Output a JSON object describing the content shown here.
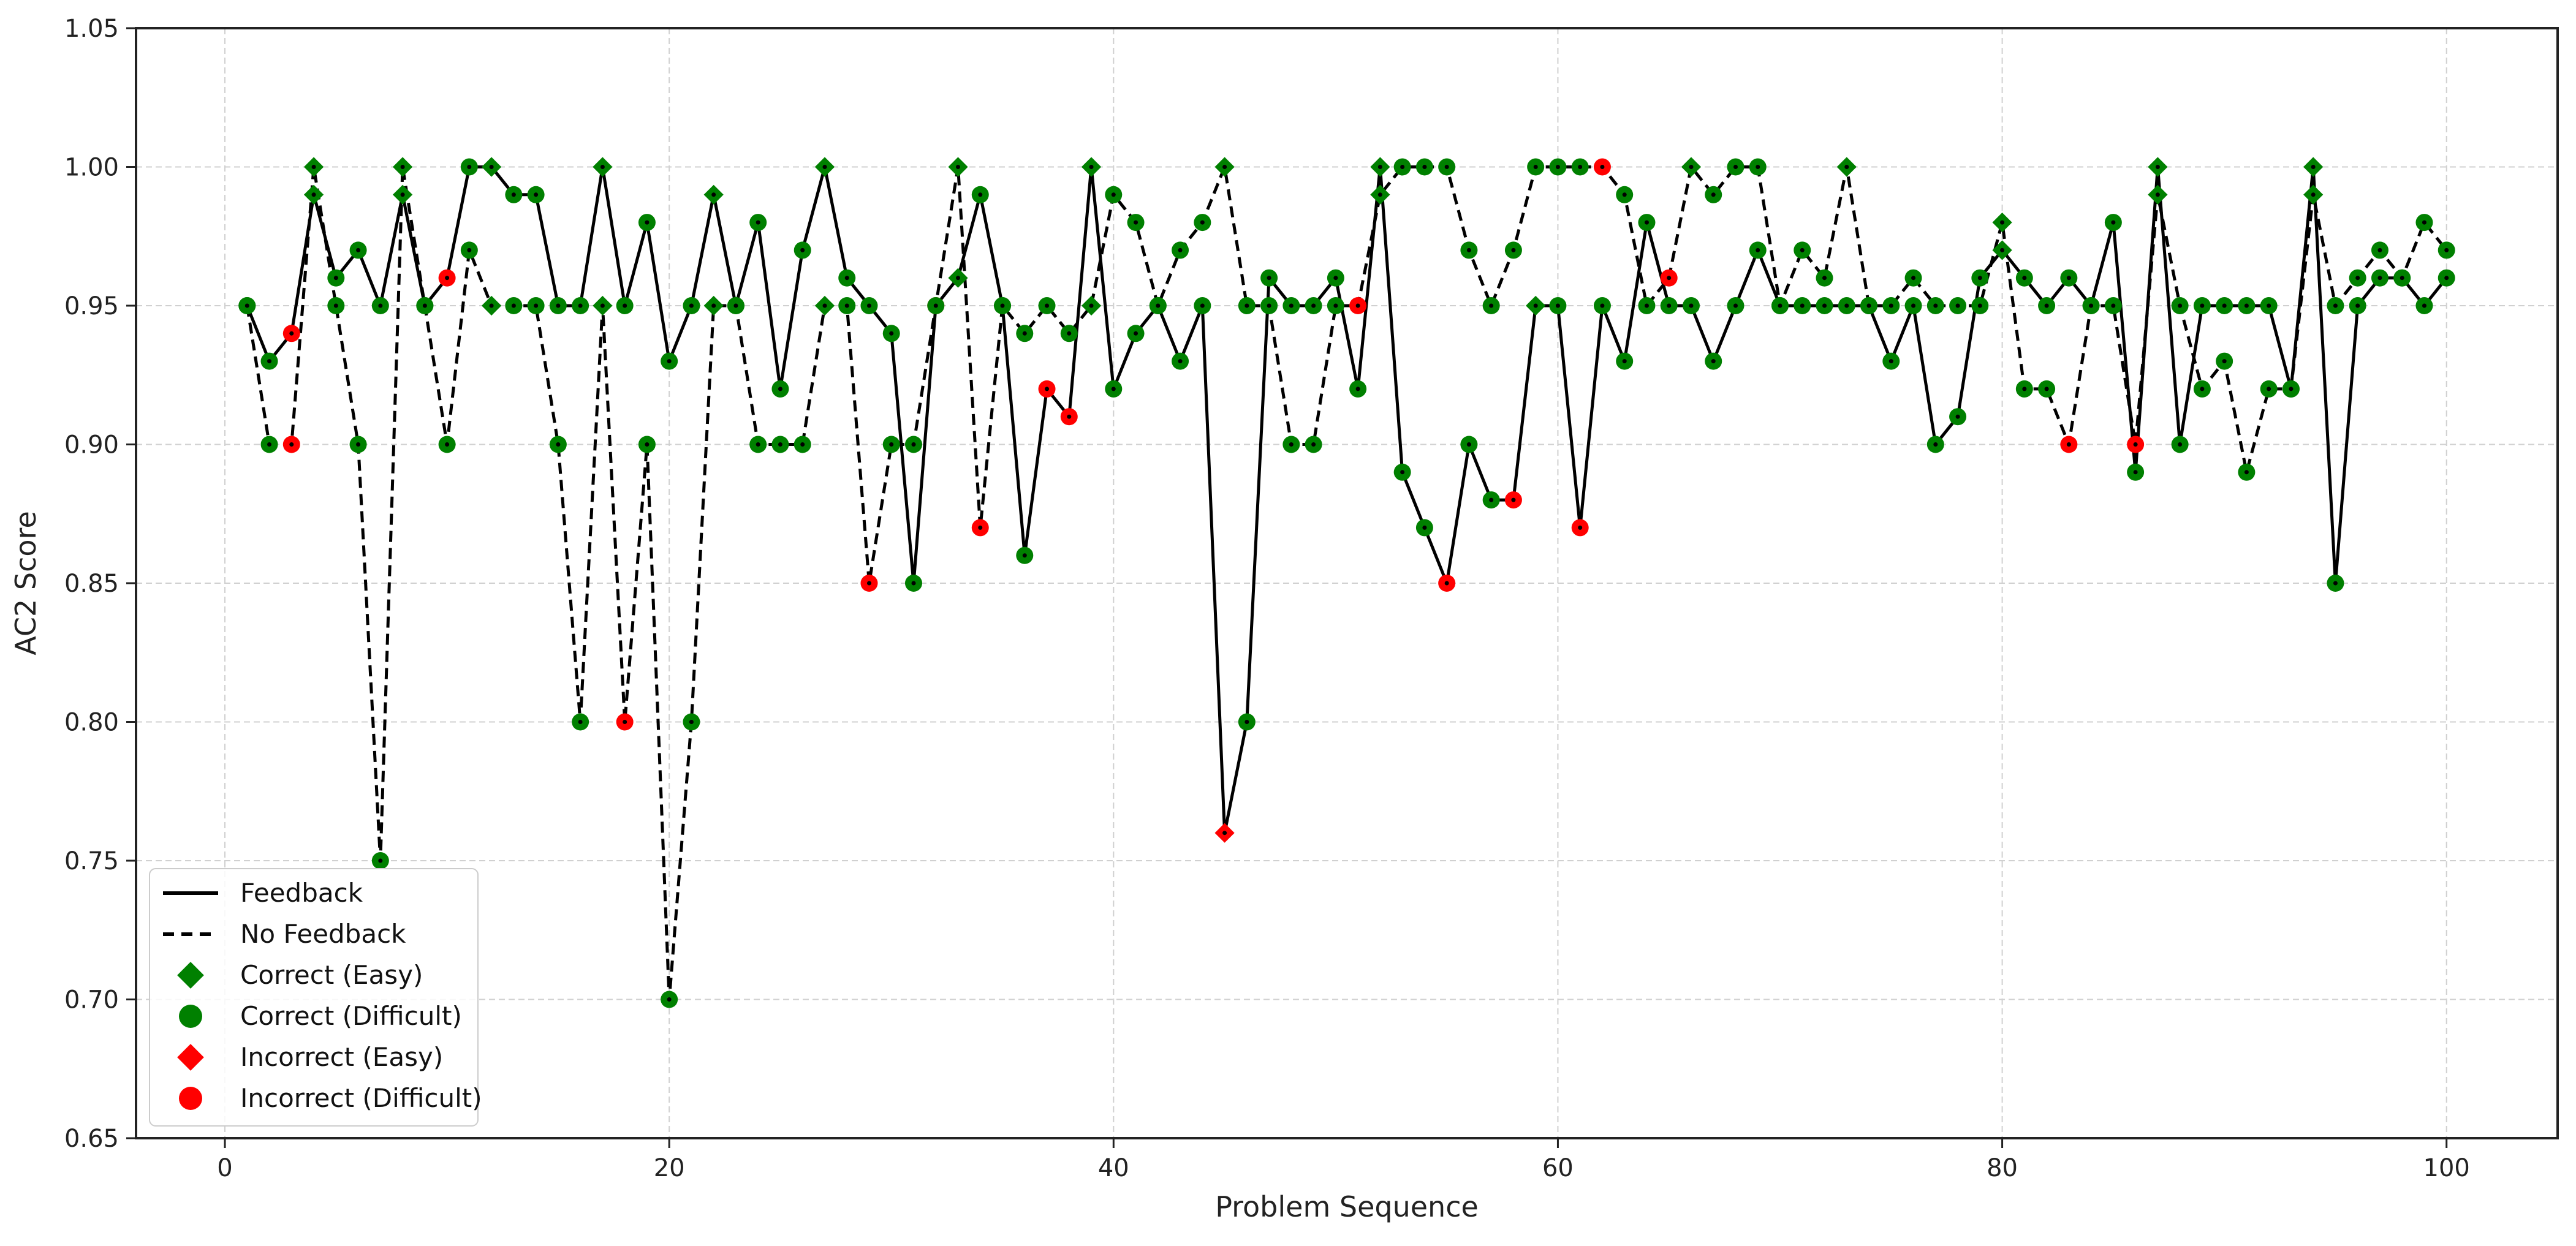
{
  "chart_data": {
    "type": "line",
    "xlabel": "Problem Sequence",
    "ylabel": "AC2 Score",
    "xlim": [
      -4,
      105
    ],
    "ylim": [
      0.65,
      1.05
    ],
    "x_ticks": [
      {
        "value": 0,
        "label": "0"
      },
      {
        "value": 20,
        "label": "20"
      },
      {
        "value": 40,
        "label": "40"
      },
      {
        "value": 60,
        "label": "60"
      },
      {
        "value": 80,
        "label": "80"
      },
      {
        "value": 100,
        "label": "100"
      }
    ],
    "y_ticks": [
      {
        "value": 0.65,
        "label": "0.65"
      },
      {
        "value": 0.7,
        "label": "0.70"
      },
      {
        "value": 0.75,
        "label": "0.75"
      },
      {
        "value": 0.8,
        "label": "0.80"
      },
      {
        "value": 0.85,
        "label": "0.85"
      },
      {
        "value": 0.9,
        "label": "0.90"
      },
      {
        "value": 0.95,
        "label": "0.95"
      },
      {
        "value": 1.0,
        "label": "1.00"
      },
      {
        "value": 1.05,
        "label": "1.05"
      }
    ],
    "grid": true,
    "legend_position": "bottom-left",
    "x": [
      1,
      2,
      3,
      4,
      5,
      6,
      7,
      8,
      9,
      10,
      11,
      12,
      13,
      14,
      15,
      16,
      17,
      18,
      19,
      20,
      21,
      22,
      23,
      24,
      25,
      26,
      27,
      28,
      29,
      30,
      31,
      32,
      33,
      34,
      35,
      36,
      37,
      38,
      39,
      40,
      41,
      42,
      43,
      44,
      45,
      46,
      47,
      48,
      49,
      50,
      51,
      52,
      53,
      54,
      55,
      56,
      57,
      58,
      59,
      60,
      61,
      62,
      63,
      64,
      65,
      66,
      67,
      68,
      69,
      70,
      71,
      72,
      73,
      74,
      75,
      76,
      77,
      78,
      79,
      80,
      81,
      82,
      83,
      84,
      85,
      86,
      87,
      88,
      89,
      90,
      91,
      92,
      93,
      94,
      95,
      96,
      97,
      98,
      99,
      100
    ],
    "series": [
      {
        "name": "Feedback",
        "line_style": "solid",
        "values": [
          0.95,
          0.93,
          0.94,
          0.99,
          0.96,
          0.97,
          0.95,
          0.99,
          0.95,
          0.96,
          1.0,
          1.0,
          0.99,
          0.99,
          0.95,
          0.95,
          1.0,
          0.95,
          0.98,
          0.93,
          0.95,
          0.99,
          0.95,
          0.98,
          0.92,
          0.97,
          1.0,
          0.96,
          0.95,
          0.94,
          0.85,
          0.95,
          0.96,
          0.99,
          0.95,
          0.86,
          0.92,
          0.91,
          1.0,
          0.92,
          0.94,
          0.95,
          0.93,
          0.95,
          0.76,
          0.8,
          0.96,
          0.95,
          0.95,
          0.96,
          0.92,
          1.0,
          0.89,
          0.87,
          0.85,
          0.9,
          0.88,
          0.88,
          0.95,
          0.95,
          0.87,
          0.95,
          0.93,
          0.98,
          0.95,
          0.95,
          0.93,
          0.95,
          0.97,
          0.95,
          0.95,
          0.95,
          0.95,
          0.95,
          0.93,
          0.95,
          0.9,
          0.91,
          0.96,
          0.97,
          0.96,
          0.95,
          0.96,
          0.95,
          0.98,
          0.89,
          1.0,
          0.9,
          0.95,
          0.95,
          0.95,
          0.95,
          0.92,
          1.0,
          0.85,
          0.95,
          0.96,
          0.96,
          0.95,
          0.96
        ],
        "markers": [
          "C-D",
          "C-D",
          "I-D",
          "C-E",
          "C-D",
          "C-D",
          "C-D",
          "C-E",
          "C-D",
          "I-D",
          "C-D",
          "C-E",
          "C-D",
          "C-D",
          "C-D",
          "C-D",
          "C-E",
          "C-D",
          "C-D",
          "C-D",
          "C-D",
          "C-E",
          "C-D",
          "C-D",
          "C-D",
          "C-D",
          "C-E",
          "C-D",
          "C-D",
          "C-D",
          "C-D",
          "I-D",
          "C-E",
          "C-D",
          "C-D",
          "C-D",
          "I-D",
          "I-D",
          "C-E",
          "C-D",
          "C-D",
          "C-D",
          "C-D",
          "C-D",
          "I-E",
          "C-D",
          "C-D",
          "C-D",
          "C-D",
          "C-D",
          "C-D",
          "C-E",
          "C-D",
          "C-D",
          "I-D",
          "C-D",
          "C-D",
          "I-D",
          "C-E",
          "C-D",
          "I-D",
          "C-D",
          "C-D",
          "C-D",
          "C-D",
          "C-D",
          "C-D",
          "C-D",
          "C-D",
          "C-D",
          "C-D",
          "C-D",
          "C-D",
          "C-D",
          "C-D",
          "C-D",
          "C-D",
          "C-D",
          "C-D",
          "C-E",
          "C-D",
          "C-D",
          "C-D",
          "C-D",
          "C-D",
          "C-D",
          "C-E",
          "C-D",
          "C-D",
          "C-D",
          "C-D",
          "C-D",
          "C-D",
          "C-E",
          "C-D",
          "C-D",
          "C-D",
          "C-D",
          "C-D",
          "C-D"
        ]
      },
      {
        "name": "No Feedback",
        "line_style": "dashed",
        "values": [
          0.95,
          0.9,
          0.9,
          1.0,
          0.95,
          0.9,
          0.75,
          1.0,
          0.95,
          0.9,
          0.97,
          0.95,
          0.95,
          0.95,
          0.9,
          0.8,
          0.95,
          0.8,
          0.9,
          0.7,
          0.8,
          0.95,
          0.95,
          0.9,
          0.9,
          0.9,
          0.95,
          0.95,
          0.85,
          0.9,
          0.9,
          0.95,
          1.0,
          0.87,
          0.95,
          0.94,
          0.95,
          0.94,
          0.95,
          0.99,
          0.98,
          0.95,
          0.97,
          0.98,
          1.0,
          0.95,
          0.95,
          0.9,
          0.9,
          0.95,
          0.95,
          0.99,
          1.0,
          1.0,
          1.0,
          0.97,
          0.95,
          0.97,
          1.0,
          1.0,
          1.0,
          1.0,
          0.99,
          0.95,
          0.96,
          1.0,
          0.99,
          1.0,
          1.0,
          0.95,
          0.97,
          0.96,
          1.0,
          0.95,
          0.95,
          0.96,
          0.95,
          0.95,
          0.95,
          0.98,
          0.92,
          0.92,
          0.9,
          0.95,
          0.95,
          0.9,
          0.99,
          0.95,
          0.92,
          0.93,
          0.89,
          0.92,
          0.92,
          0.99,
          0.95,
          0.96,
          0.97,
          0.96,
          0.98,
          0.97
        ],
        "markers": [
          "C-D",
          "C-D",
          "I-D",
          "C-E",
          "C-D",
          "C-D",
          "C-D",
          "C-E",
          "C-D",
          "C-D",
          "C-D",
          "C-E",
          "C-D",
          "C-D",
          "C-D",
          "C-D",
          "C-E",
          "I-D",
          "C-D",
          "C-D",
          "C-D",
          "C-E",
          "C-D",
          "C-D",
          "C-D",
          "C-D",
          "C-E",
          "C-D",
          "I-D",
          "C-D",
          "C-D",
          "C-D",
          "C-E",
          "I-D",
          "C-D",
          "C-D",
          "C-D",
          "C-D",
          "C-E",
          "C-D",
          "C-D",
          "C-D",
          "C-D",
          "C-D",
          "C-E",
          "C-D",
          "C-D",
          "C-D",
          "C-D",
          "C-D",
          "I-D",
          "C-E",
          "C-D",
          "C-D",
          "C-D",
          "C-D",
          "C-D",
          "C-D",
          "C-D",
          "C-D",
          "C-D",
          "I-D",
          "C-D",
          "C-D",
          "I-D",
          "C-E",
          "C-D",
          "C-D",
          "C-D",
          "C-D",
          "C-D",
          "C-D",
          "C-E",
          "C-D",
          "C-D",
          "C-D",
          "C-D",
          "C-D",
          "C-D",
          "C-E",
          "C-D",
          "C-D",
          "I-D",
          "C-D",
          "C-D",
          "I-D",
          "C-E",
          "C-D",
          "C-D",
          "C-D",
          "C-D",
          "C-D",
          "C-D",
          "C-E",
          "C-D",
          "C-D",
          "C-D",
          "C-D",
          "C-D",
          "C-D"
        ]
      }
    ],
    "marker_styles": {
      "C-E": {
        "label": "Correct (Easy)",
        "shape": "diamond",
        "color": "#008000"
      },
      "C-D": {
        "label": "Correct (Difficult)",
        "shape": "circle",
        "color": "#008000"
      },
      "I-E": {
        "label": "Incorrect (Easy)",
        "shape": "diamond",
        "color": "#ff0000"
      },
      "I-D": {
        "label": "Incorrect (Difficult)",
        "shape": "circle",
        "color": "#ff0000"
      }
    },
    "legend": [
      {
        "label": "Feedback",
        "kind": "line-solid"
      },
      {
        "label": "No Feedback",
        "kind": "line-dashed"
      },
      {
        "label": "Correct (Easy)",
        "kind": "diamond",
        "color": "#008000"
      },
      {
        "label": "Correct (Difficult)",
        "kind": "circle",
        "color": "#008000"
      },
      {
        "label": "Incorrect (Easy)",
        "kind": "diamond",
        "color": "#ff0000"
      },
      {
        "label": "Incorrect (Difficult)",
        "kind": "circle",
        "color": "#ff0000"
      }
    ]
  }
}
